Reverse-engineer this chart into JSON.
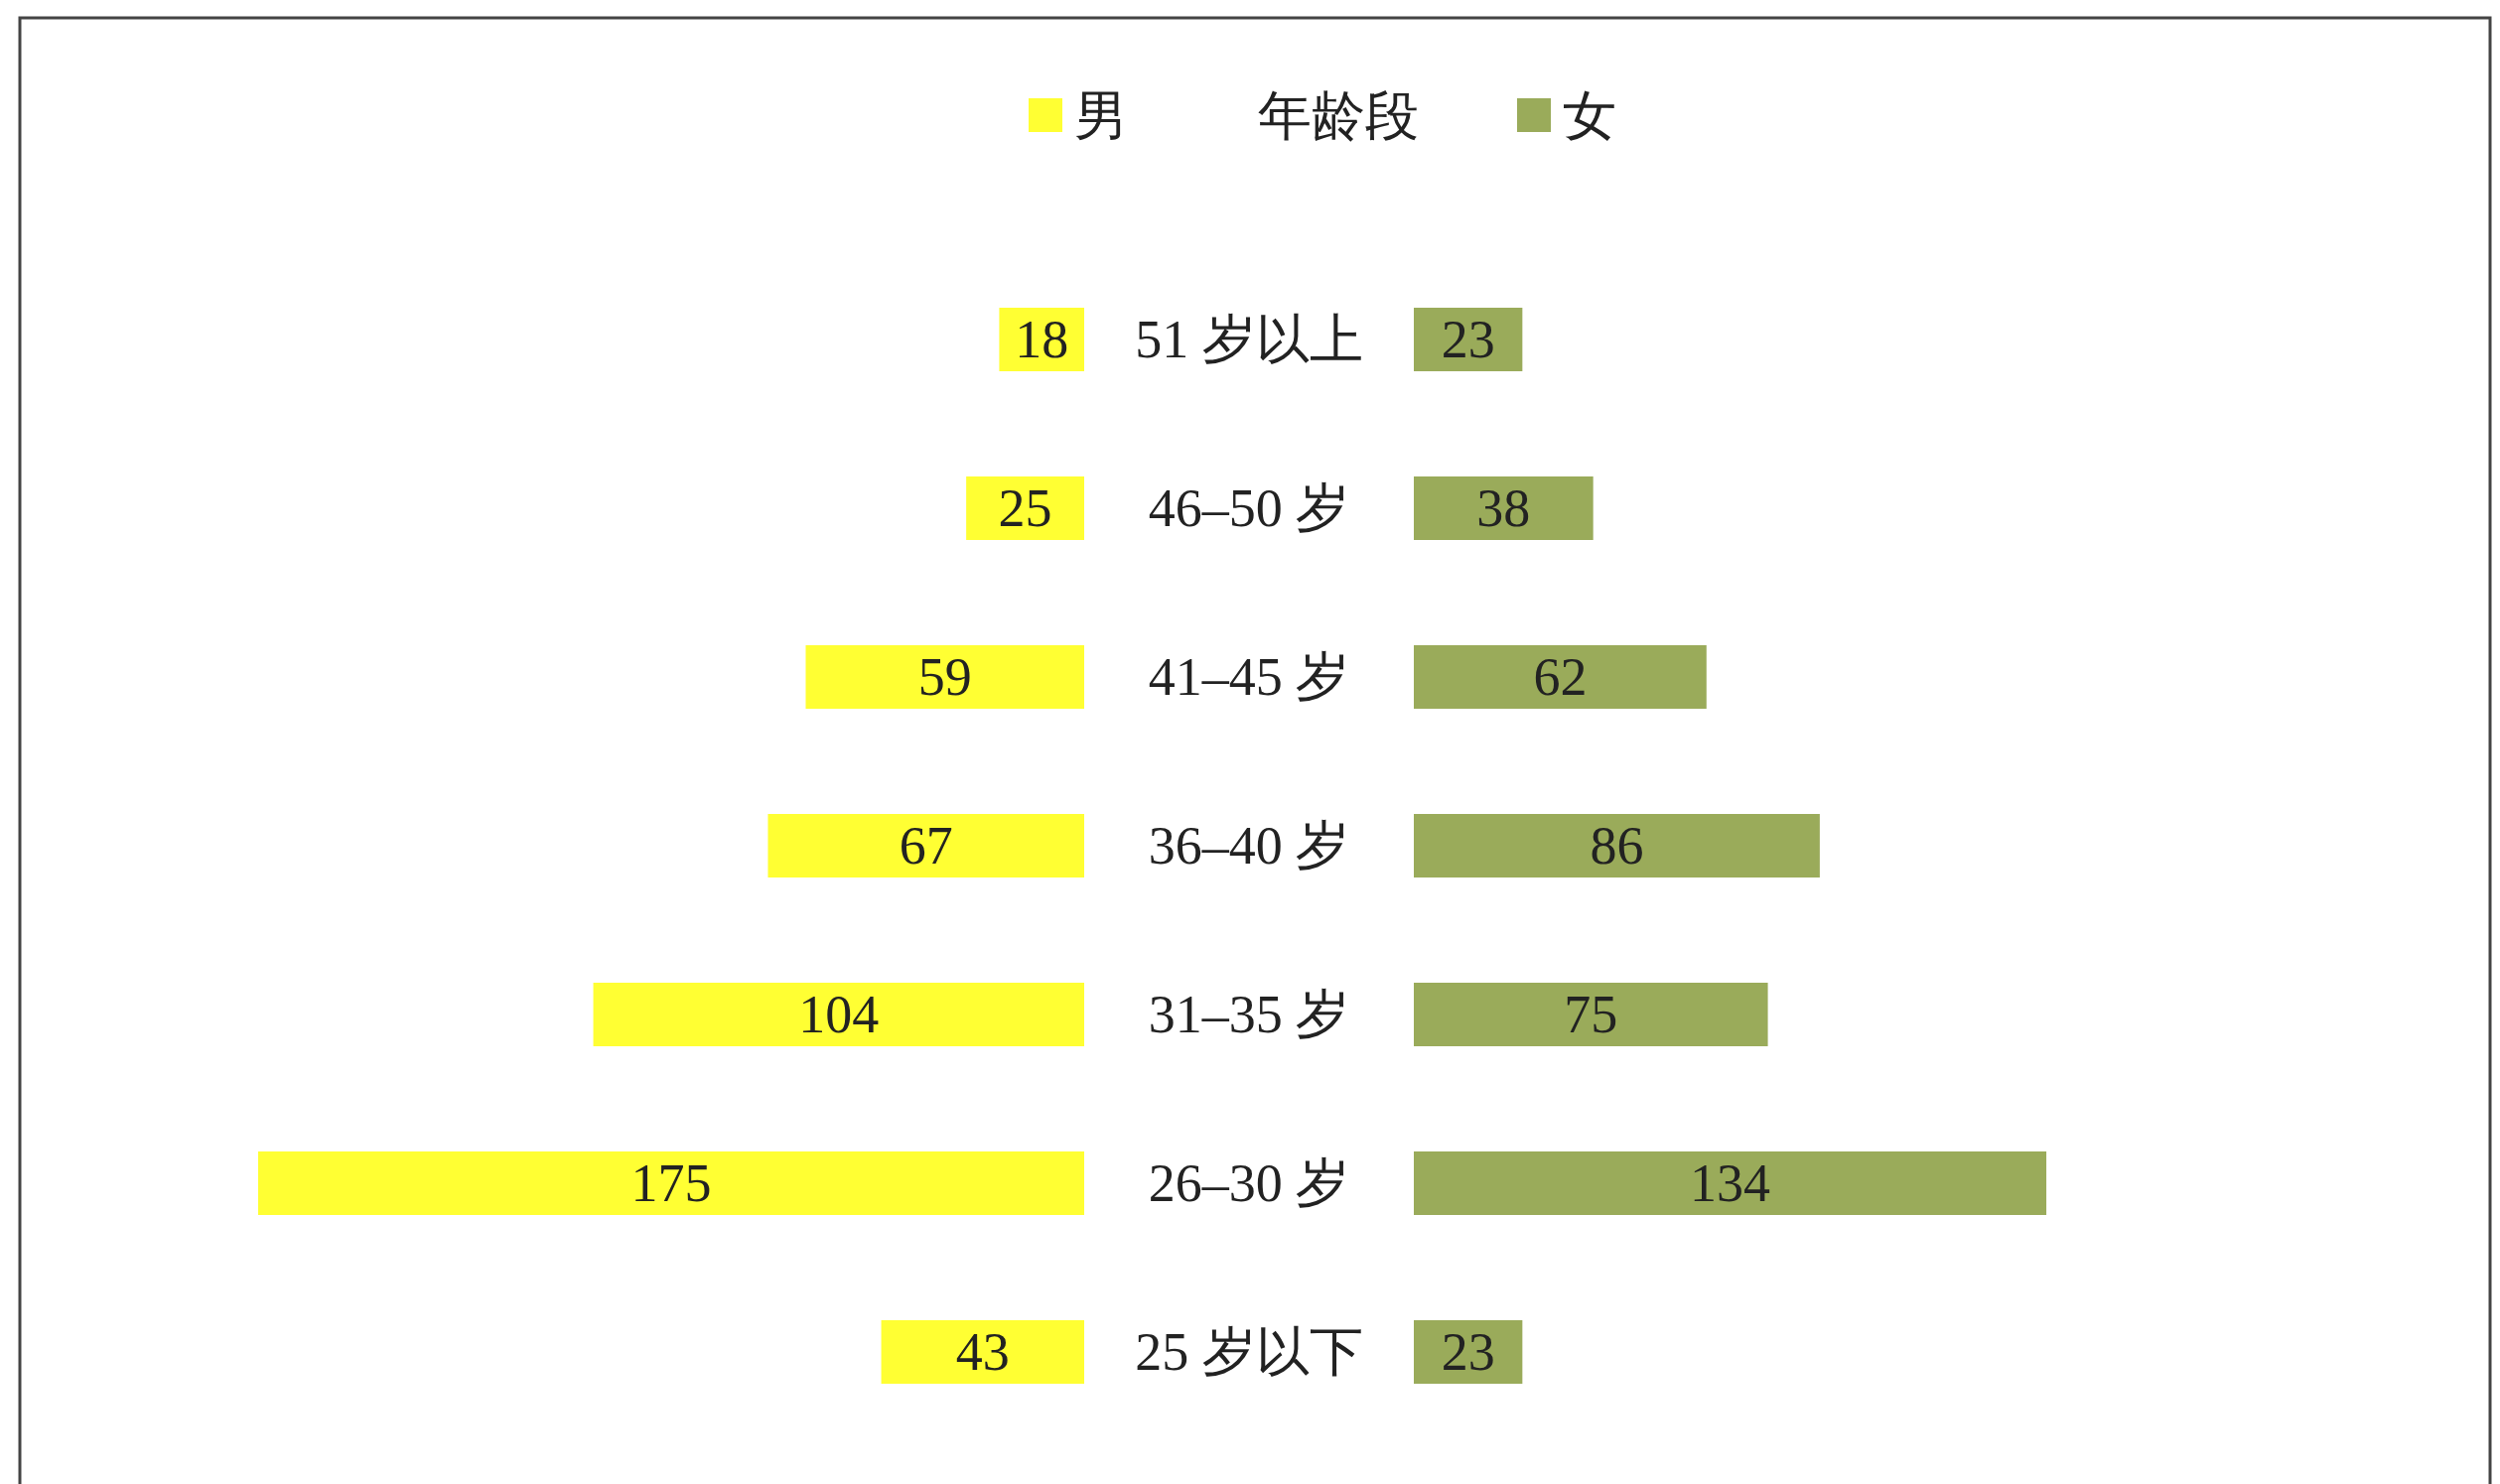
{
  "chart_data": [
    {
      "type": "bar",
      "orientation": "horizontal",
      "ylabel": "年龄段",
      "legend": "top",
      "data_labels": true,
      "tick_labels": "y",
      "categories": [
        "51 岁以上",
        "46–50 岁",
        "41–45 岁",
        "36–40 岁",
        "31–35 岁",
        "26–30 岁",
        "25 岁以下"
      ],
      "series": [
        {
          "name": "男",
          "color": "#ffff33",
          "values": [
            18,
            25,
            59,
            67,
            104,
            175,
            43
          ]
        }
      ]
    },
    {
      "type": "bar",
      "orientation": "horizontal",
      "legend": "top",
      "data_labels": true,
      "tick_labels": false,
      "categories": [
        null,
        null,
        null,
        null,
        null,
        null,
        null
      ],
      "series": [
        {
          "name": "女",
          "color": "#9aab5a",
          "values": [
            23,
            38,
            62,
            86,
            75,
            134,
            23
          ]
        }
      ]
    }
  ]
}
